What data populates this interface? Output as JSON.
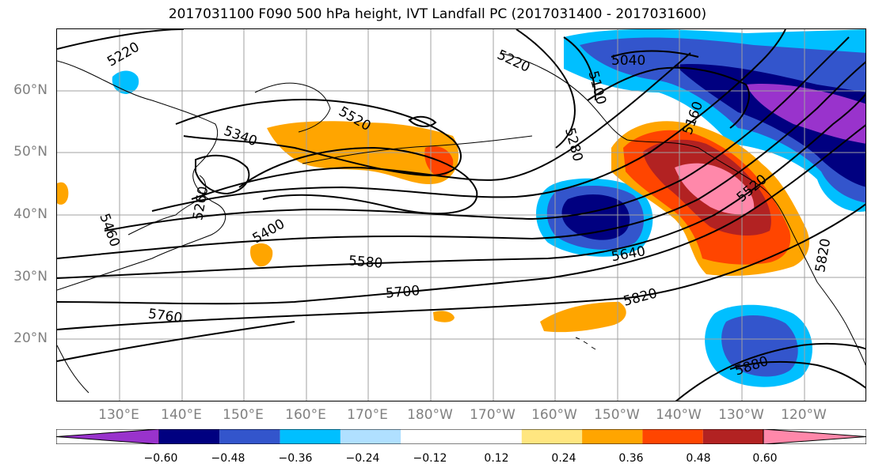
{
  "title": "2017031100 F090 500 hPa height, IVT Landfall PC (2017031400 - 2017031600)",
  "lat_labels": [
    "60°N",
    "50°N",
    "40°N",
    "30°N",
    "20°N"
  ],
  "lon_labels": [
    "130°E",
    "140°E",
    "150°E",
    "160°E",
    "170°E",
    "180°W",
    "170°W",
    "160°W",
    "150°W",
    "140°W",
    "130°W",
    "120°W"
  ],
  "contour_labels": [
    "5220",
    "5220",
    "5040",
    "5100",
    "5340",
    "5520",
    "5160",
    "5280",
    "5260",
    "5460",
    "5520",
    "5400",
    "5580",
    "5640",
    "5700",
    "5820",
    "5760",
    "5820",
    "5880"
  ],
  "colorbar": {
    "colors": [
      "#9933cc",
      "#000080",
      "#3355cc",
      "#00bfff",
      "#b0e0ff",
      "#ffffff",
      "#ffffff",
      "#ffe680",
      "#ffa500",
      "#ff4500",
      "#b22222",
      "#ff88aa"
    ],
    "ticks": [
      "−0.60",
      "−0.48",
      "−0.36",
      "−0.24",
      "−0.12",
      "0.12",
      "0.24",
      "0.36",
      "0.48",
      "0.60"
    ]
  },
  "colors": {
    "land_line": "#000000",
    "grid": "#a0a0a0",
    "contour": "#000000"
  }
}
